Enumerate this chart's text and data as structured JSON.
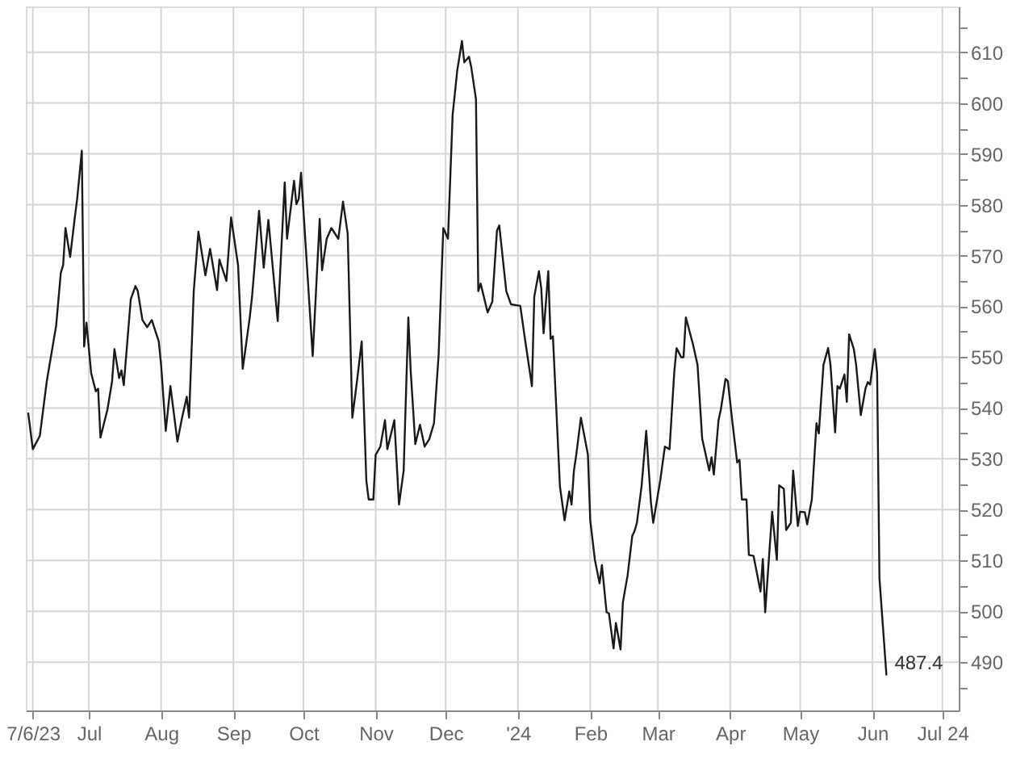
{
  "chart_data": {
    "type": "line",
    "x": [
      "2023-06-05",
      "2023-06-07",
      "2023-06-10",
      "2023-06-13",
      "2023-06-17",
      "2023-06-19",
      "2023-06-20",
      "2023-06-21",
      "2023-06-23",
      "2023-06-25",
      "2023-06-26",
      "2023-06-28",
      "2023-06-29",
      "2023-06-30",
      "2023-07-02",
      "2023-07-04",
      "2023-07-05",
      "2023-07-06",
      "2023-07-09",
      "2023-07-11",
      "2023-07-12",
      "2023-07-14",
      "2023-07-15",
      "2023-07-16",
      "2023-07-19",
      "2023-07-21",
      "2023-07-22",
      "2023-07-24",
      "2023-07-26",
      "2023-07-28",
      "2023-07-31",
      "2023-08-01",
      "2023-08-03",
      "2023-08-05",
      "2023-08-08",
      "2023-08-10",
      "2023-08-12",
      "2023-08-13",
      "2023-08-15",
      "2023-08-17",
      "2023-08-20",
      "2023-08-22",
      "2023-08-25",
      "2023-08-26",
      "2023-08-29",
      "2023-08-31",
      "2023-09-03",
      "2023-09-05",
      "2023-09-08",
      "2023-09-09",
      "2023-09-12",
      "2023-09-14",
      "2023-09-16",
      "2023-09-20",
      "2023-09-23",
      "2023-09-24",
      "2023-09-27",
      "2023-09-28",
      "2023-09-29",
      "2023-09-30",
      "2023-10-05",
      "2023-10-08",
      "2023-10-09",
      "2023-10-11",
      "2023-10-13",
      "2023-10-16",
      "2023-10-18",
      "2023-10-20",
      "2023-10-22",
      "2023-10-24",
      "2023-10-26",
      "2023-10-28",
      "2023-10-29",
      "2023-10-31",
      "2023-11-01",
      "2023-11-03",
      "2023-11-05",
      "2023-11-06",
      "2023-11-09",
      "2023-11-11",
      "2023-11-13",
      "2023-11-15",
      "2023-11-16",
      "2023-11-18",
      "2023-11-20",
      "2023-11-22",
      "2023-11-24",
      "2023-11-26",
      "2023-11-28",
      "2023-11-30",
      "2023-12-02",
      "2023-12-04",
      "2023-12-06",
      "2023-12-08",
      "2023-12-09",
      "2023-12-11",
      "2023-12-12",
      "2023-12-14",
      "2023-12-15",
      "2023-12-16",
      "2023-12-19",
      "2023-12-21",
      "2023-12-23",
      "2023-12-24",
      "2023-12-27",
      "2023-12-29",
      "2024-01-02",
      "2024-01-04",
      "2024-01-07",
      "2024-01-08",
      "2024-01-10",
      "2024-01-11",
      "2024-01-12",
      "2024-01-14",
      "2024-01-15",
      "2024-01-16",
      "2024-01-19",
      "2024-01-21",
      "2024-01-23",
      "2024-01-24",
      "2024-01-25",
      "2024-01-26",
      "2024-01-28",
      "2024-01-31",
      "2024-02-01",
      "2024-02-03",
      "2024-02-05",
      "2024-02-06",
      "2024-02-08",
      "2024-02-09",
      "2024-02-11",
      "2024-02-12",
      "2024-02-14",
      "2024-02-15",
      "2024-02-17",
      "2024-02-19",
      "2024-02-20",
      "2024-02-21",
      "2024-02-23",
      "2024-02-25",
      "2024-02-27",
      "2024-02-28",
      "2024-03-02",
      "2024-03-04",
      "2024-03-06",
      "2024-03-08",
      "2024-03-09",
      "2024-03-11",
      "2024-03-12",
      "2024-03-13",
      "2024-03-16",
      "2024-03-18",
      "2024-03-20",
      "2024-03-21",
      "2024-03-23",
      "2024-03-24",
      "2024-03-25",
      "2024-03-27",
      "2024-03-28",
      "2024-03-30",
      "2024-03-31",
      "2024-04-02",
      "2024-04-04",
      "2024-04-05",
      "2024-04-06",
      "2024-04-08",
      "2024-04-09",
      "2024-04-11",
      "2024-04-12",
      "2024-04-14",
      "2024-04-15",
      "2024-04-16",
      "2024-04-19",
      "2024-04-21",
      "2024-04-22",
      "2024-04-24",
      "2024-04-25",
      "2024-04-27",
      "2024-04-28",
      "2024-04-30",
      "2024-05-01",
      "2024-05-03",
      "2024-05-04",
      "2024-05-06",
      "2024-05-08",
      "2024-05-09",
      "2024-05-11",
      "2024-05-13",
      "2024-05-14",
      "2024-05-16",
      "2024-05-17",
      "2024-05-18",
      "2024-05-20",
      "2024-05-21",
      "2024-05-22",
      "2024-05-24",
      "2024-05-25",
      "2024-05-27",
      "2024-05-29",
      "2024-05-30",
      "2024-05-31",
      "2024-06-02",
      "2024-06-03",
      "2024-06-04",
      "2024-06-07"
    ],
    "series": [
      {
        "color": "#1a1a1a",
        "values": [
          539.1,
          531.9,
          534.5,
          545.3,
          556.2,
          566.6,
          568.1,
          575.4,
          569.7,
          577.5,
          581.1,
          590.6,
          552.1,
          556.8,
          546.9,
          543.3,
          543.8,
          534.2,
          539.7,
          545.3,
          551.6,
          545.9,
          547.4,
          544.5,
          561.4,
          564.0,
          563.0,
          557.3,
          555.9,
          557.3,
          553.1,
          548.5,
          535.5,
          544.3,
          533.4,
          538.1,
          542.2,
          538.1,
          563.0,
          574.7,
          566.1,
          571.3,
          563.2,
          569.2,
          565.0,
          577.5,
          568.1,
          547.7,
          557.8,
          561.9,
          578.8,
          567.6,
          577.0,
          557.1,
          584.4,
          573.3,
          584.7,
          580.1,
          581.1,
          586.3,
          550.2,
          577.2,
          567.1,
          573.3,
          575.4,
          573.3,
          580.6,
          574.3,
          538.1,
          545.3,
          553.1,
          525.7,
          522.0,
          522.0,
          530.8,
          532.4,
          537.6,
          531.9,
          537.6,
          521.0,
          527.7,
          557.8,
          547.4,
          532.9,
          536.7,
          532.4,
          533.9,
          537.0,
          550.5,
          575.4,
          573.3,
          597.7,
          606.5,
          612.2,
          608.0,
          609.1,
          607.0,
          600.8,
          563.0,
          564.5,
          558.8,
          560.9,
          574.9,
          575.9,
          563.0,
          560.4,
          560.1,
          553.6,
          544.3,
          561.9,
          566.9,
          563.5,
          554.7,
          566.9,
          553.6,
          554.1,
          524.6,
          517.9,
          523.6,
          521.0,
          527.7,
          530.8,
          538.1,
          530.8,
          517.9,
          510.1,
          505.5,
          509.1,
          499.8,
          499.6,
          492.7,
          497.7,
          492.5,
          501.8,
          507.0,
          514.8,
          515.8,
          517.4,
          524.6,
          535.5,
          521.5,
          517.4,
          525.7,
          532.4,
          531.9,
          546.9,
          551.8,
          550.0,
          550.0,
          557.8,
          552.6,
          548.5,
          533.9,
          531.9,
          527.7,
          530.3,
          526.9,
          537.6,
          539.7,
          545.7,
          545.3,
          537.0,
          529.3,
          529.8,
          522.0,
          522.0,
          511.1,
          510.9,
          508.6,
          503.9,
          510.3,
          499.8,
          519.6,
          510.1,
          524.8,
          524.1,
          516.0,
          517.4,
          527.7,
          516.8,
          519.6,
          519.5,
          517.1,
          522.0,
          537.0,
          535.0,
          548.5,
          551.8,
          548.5,
          535.2,
          544.3,
          543.8,
          546.6,
          541.2,
          554.5,
          551.6,
          548.5,
          538.6,
          543.8,
          545.1,
          544.6,
          551.6,
          546.9,
          506.5,
          487.4
        ]
      }
    ],
    "xlim": [
      "2023-06-04",
      "2024-07-08"
    ],
    "xticks": [
      {
        "value": "2023-06-07",
        "label": "7/6/23"
      },
      {
        "value": "2023-07-01",
        "label": "Jul"
      },
      {
        "value": "2023-08-01",
        "label": "Aug"
      },
      {
        "value": "2023-09-01",
        "label": "Sep"
      },
      {
        "value": "2023-10-01",
        "label": "Oct"
      },
      {
        "value": "2023-11-01",
        "label": "Nov"
      },
      {
        "value": "2023-12-01",
        "label": "Dec"
      },
      {
        "value": "2024-01-01",
        "label": "'24"
      },
      {
        "value": "2024-02-01",
        "label": "Feb"
      },
      {
        "value": "2024-03-01",
        "label": "Mar"
      },
      {
        "value": "2024-04-01",
        "label": "Apr"
      },
      {
        "value": "2024-05-01",
        "label": "May"
      },
      {
        "value": "2024-06-01",
        "label": "Jun"
      },
      {
        "value": "2024-07-01",
        "label": "Jul 24"
      }
    ],
    "ylim": [
      480.5,
      619
    ],
    "yticks": [
      {
        "value": 485,
        "label": null
      },
      490,
      {
        "value": 495,
        "label": null
      },
      500,
      {
        "value": 505,
        "label": null
      },
      510,
      {
        "value": 515,
        "label": null
      },
      520,
      {
        "value": 525,
        "label": null
      },
      530,
      {
        "value": 535,
        "label": null
      },
      540,
      {
        "value": 545,
        "label": null
      },
      550,
      {
        "value": 555,
        "label": null
      },
      560,
      {
        "value": 565,
        "label": null
      },
      570,
      {
        "value": 575,
        "label": null
      },
      580,
      {
        "value": 585,
        "label": null
      },
      590,
      {
        "value": 595,
        "label": null
      },
      600,
      {
        "value": 605,
        "label": null
      },
      610,
      {
        "value": 615,
        "label": null
      }
    ],
    "grid": true,
    "annotations": [
      {
        "text": "487.4",
        "x": "2024-06-07",
        "y": 487.4
      }
    ]
  }
}
